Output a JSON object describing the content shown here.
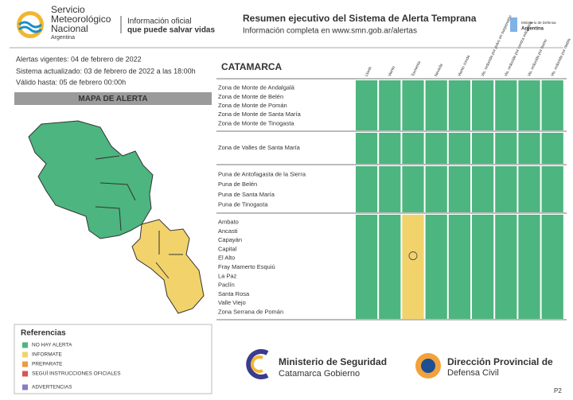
{
  "header": {
    "org_name": [
      "Servicio",
      "Meteorológico",
      "Nacional"
    ],
    "org_country": "Argentina",
    "tagline": [
      "Información oficial",
      "que puede salvar vidas"
    ],
    "title": "Resumen ejecutivo del Sistema de Alerta Temprana",
    "subtitle": "Información completa en www.smn.gob.ar/alertas",
    "ministry": "Ministerio de Defensa",
    "ministry_country": "Argentina"
  },
  "info": [
    "Alertas vigentes: 04 de febrero de 2022",
    "Sistema actualizado: 03 de febrero de 2022 a las 18:00h",
    "Válido hasta: 05 de febrero 00:00h"
  ],
  "map_title": "MAPA DE ALERTA",
  "references": {
    "title": "Referencias",
    "items": [
      {
        "label": "NO HAY ALERTA",
        "color": "#4db57f"
      },
      {
        "label": "INFORMATE",
        "color": "#f2d36b"
      },
      {
        "label": "PREPARATE",
        "color": "#ef9a3c"
      },
      {
        "label": "SEGUÍ INSTRUCCIONES OFICIALES",
        "color": "#d9534f"
      },
      {
        "label": "ADVERTENCIAS",
        "color": "#8a7bc4"
      }
    ]
  },
  "table": {
    "province": "CATAMARCA",
    "columns": [
      "Lluvia",
      "Viento",
      "Tormenta",
      "Nevada",
      "Viento zonda",
      "Vis. reducida por polvo en suspensión",
      "Vis. reducida por ceniza volcánica",
      "Vis. reducida por humo",
      "Vis. reducida por niebla"
    ],
    "groups": [
      {
        "zones": [
          "Zona de Monte de Andalgalá",
          "Zona de Monte de Belén",
          "Zona de Monte de Pomán",
          "Zona de Monte de Santa María",
          "Zona de Monte de Tinogasta"
        ],
        "cells": [
          "#4db57f",
          "#4db57f",
          "#4db57f",
          "#4db57f",
          "#4db57f",
          "#4db57f",
          "#4db57f",
          "#4db57f",
          "#4db57f"
        ]
      },
      {
        "zones": [
          "Zona de Valles de Santa María"
        ],
        "cells": [
          "#4db57f",
          "#4db57f",
          "#4db57f",
          "#4db57f",
          "#4db57f",
          "#4db57f",
          "#4db57f",
          "#4db57f",
          "#4db57f"
        ]
      },
      {
        "zones": [
          "Puna de Antofagasta de la Sierra",
          "Puna de Belén",
          "Puna de Santa María",
          "Puna de Tinogasta"
        ],
        "cells": [
          "#4db57f",
          "#4db57f",
          "#4db57f",
          "#4db57f",
          "#4db57f",
          "#4db57f",
          "#4db57f",
          "#4db57f",
          "#4db57f"
        ]
      },
      {
        "zones": [
          "Ambato",
          "Ancasti",
          "Capayán",
          "Capital",
          "El Alto",
          "Fray Mamerto Esquiú",
          "La Paz",
          "Paclín",
          "Santa Rosa",
          "Valle Viejo",
          "Zona Serrana de Pomán"
        ],
        "cells": [
          "#4db57f",
          "#4db57f",
          "#f2d36b",
          "#4db57f",
          "#4db57f",
          "#4db57f",
          "#4db57f",
          "#4db57f",
          "#4db57f"
        ]
      }
    ]
  },
  "footer": {
    "security": [
      "Ministerio de Seguridad",
      "Catamarca Gobierno"
    ],
    "civil_defense": [
      "Dirección Provincial de",
      "Defensa Civil"
    ],
    "page": "P2"
  }
}
